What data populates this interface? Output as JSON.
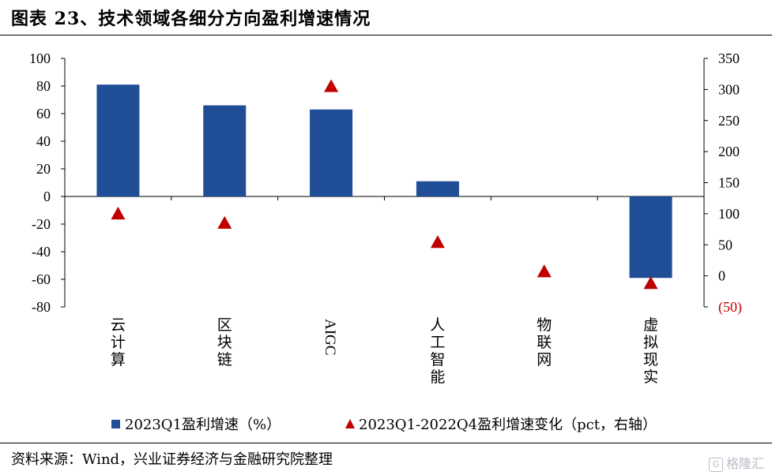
{
  "title": "图表 23、技术领域各细分方向盈利增速情况",
  "source": "资料来源：Wind，兴业证券经济与金融研究院整理",
  "watermark": {
    "icon": "G",
    "text": "格隆汇"
  },
  "colors": {
    "bar": "#1F4E96",
    "marker": "#C00000",
    "axis": "#000000",
    "negative_right": "#C00000"
  },
  "chart_data": {
    "type": "bar+scatter",
    "categories": [
      "云计算",
      "区块链",
      "AIGC",
      "人工智能",
      "物联网",
      "虚拟现实"
    ],
    "series": [
      {
        "name": "2023Q1盈利增速（%）",
        "type": "bar",
        "axis": "left",
        "values": [
          81,
          66,
          63,
          11,
          0,
          -59
        ]
      },
      {
        "name": "2023Q1-2022Q4盈利增速变化（pct，右轴）",
        "type": "scatter",
        "marker": "triangle",
        "axis": "right",
        "values": [
          100,
          85,
          305,
          54,
          7,
          -12
        ]
      }
    ],
    "left_axis": {
      "min": -80,
      "max": 100,
      "ticks": [
        "100",
        "80",
        "60",
        "40",
        "20",
        "0",
        "-20",
        "-40",
        "-60",
        "-80"
      ]
    },
    "right_axis": {
      "min": -50,
      "max": 350,
      "ticks": [
        "350",
        "300",
        "250",
        "200",
        "150",
        "100",
        "50",
        "0",
        "(50)"
      ]
    },
    "legend_position": "bottom",
    "grid": false
  }
}
